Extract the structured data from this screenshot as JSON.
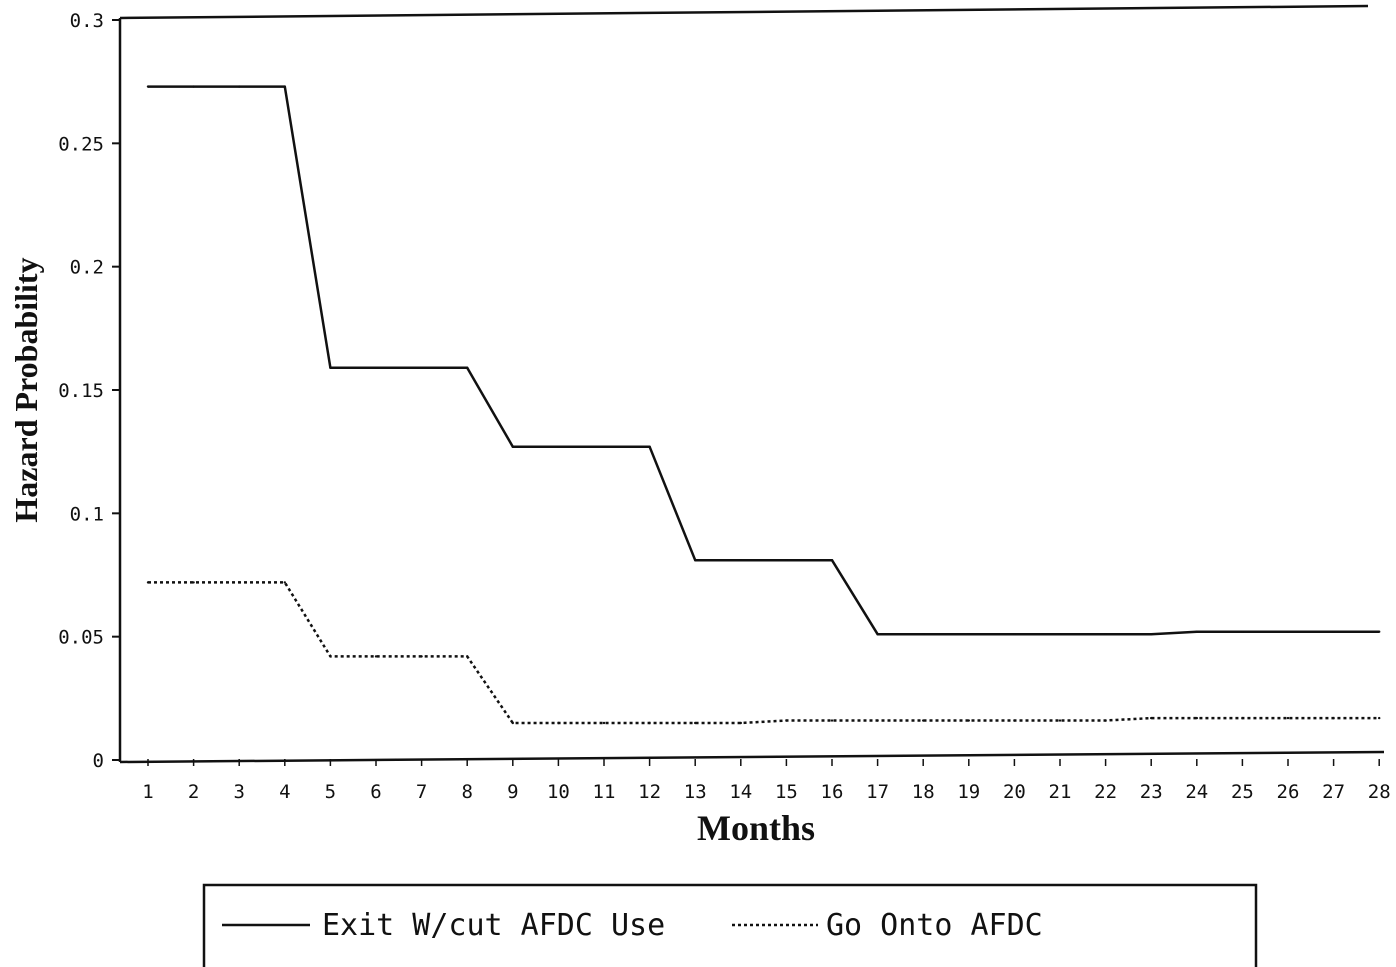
{
  "chart_data": {
    "type": "line",
    "xlabel": "Months",
    "ylabel": "Hazard Probability",
    "categories": [
      "1",
      "2",
      "3",
      "4",
      "5",
      "6",
      "7",
      "8",
      "9",
      "10",
      "11",
      "12",
      "13",
      "14",
      "15",
      "16",
      "17",
      "18",
      "19",
      "20",
      "21",
      "22",
      "23",
      "24",
      "25",
      "26",
      "27",
      "28"
    ],
    "y_ticks": [
      "0",
      "0.05",
      "0.1",
      "0.15",
      "0.2",
      "0.25",
      "0.3"
    ],
    "ylim": [
      0,
      0.3
    ],
    "grid": false,
    "legend_position": "bottom",
    "series": [
      {
        "name": "Exit W/cut AFDC Use",
        "style": "solid",
        "color": "#111111",
        "values": [
          0.273,
          0.273,
          0.273,
          0.273,
          0.159,
          0.159,
          0.159,
          0.159,
          0.127,
          0.127,
          0.127,
          0.127,
          0.081,
          0.081,
          0.081,
          0.081,
          0.051,
          0.051,
          0.051,
          0.051,
          0.051,
          0.051,
          0.051,
          0.052,
          0.052,
          0.052,
          0.052,
          0.052
        ]
      },
      {
        "name": "Go Onto AFDC",
        "style": "dotted",
        "color": "#111111",
        "values": [
          0.072,
          0.072,
          0.072,
          0.072,
          0.042,
          0.042,
          0.042,
          0.042,
          0.015,
          0.015,
          0.015,
          0.015,
          0.015,
          0.015,
          0.016,
          0.016,
          0.016,
          0.016,
          0.016,
          0.016,
          0.016,
          0.016,
          0.017,
          0.017,
          0.017,
          0.017,
          0.017,
          0.017
        ]
      }
    ]
  }
}
